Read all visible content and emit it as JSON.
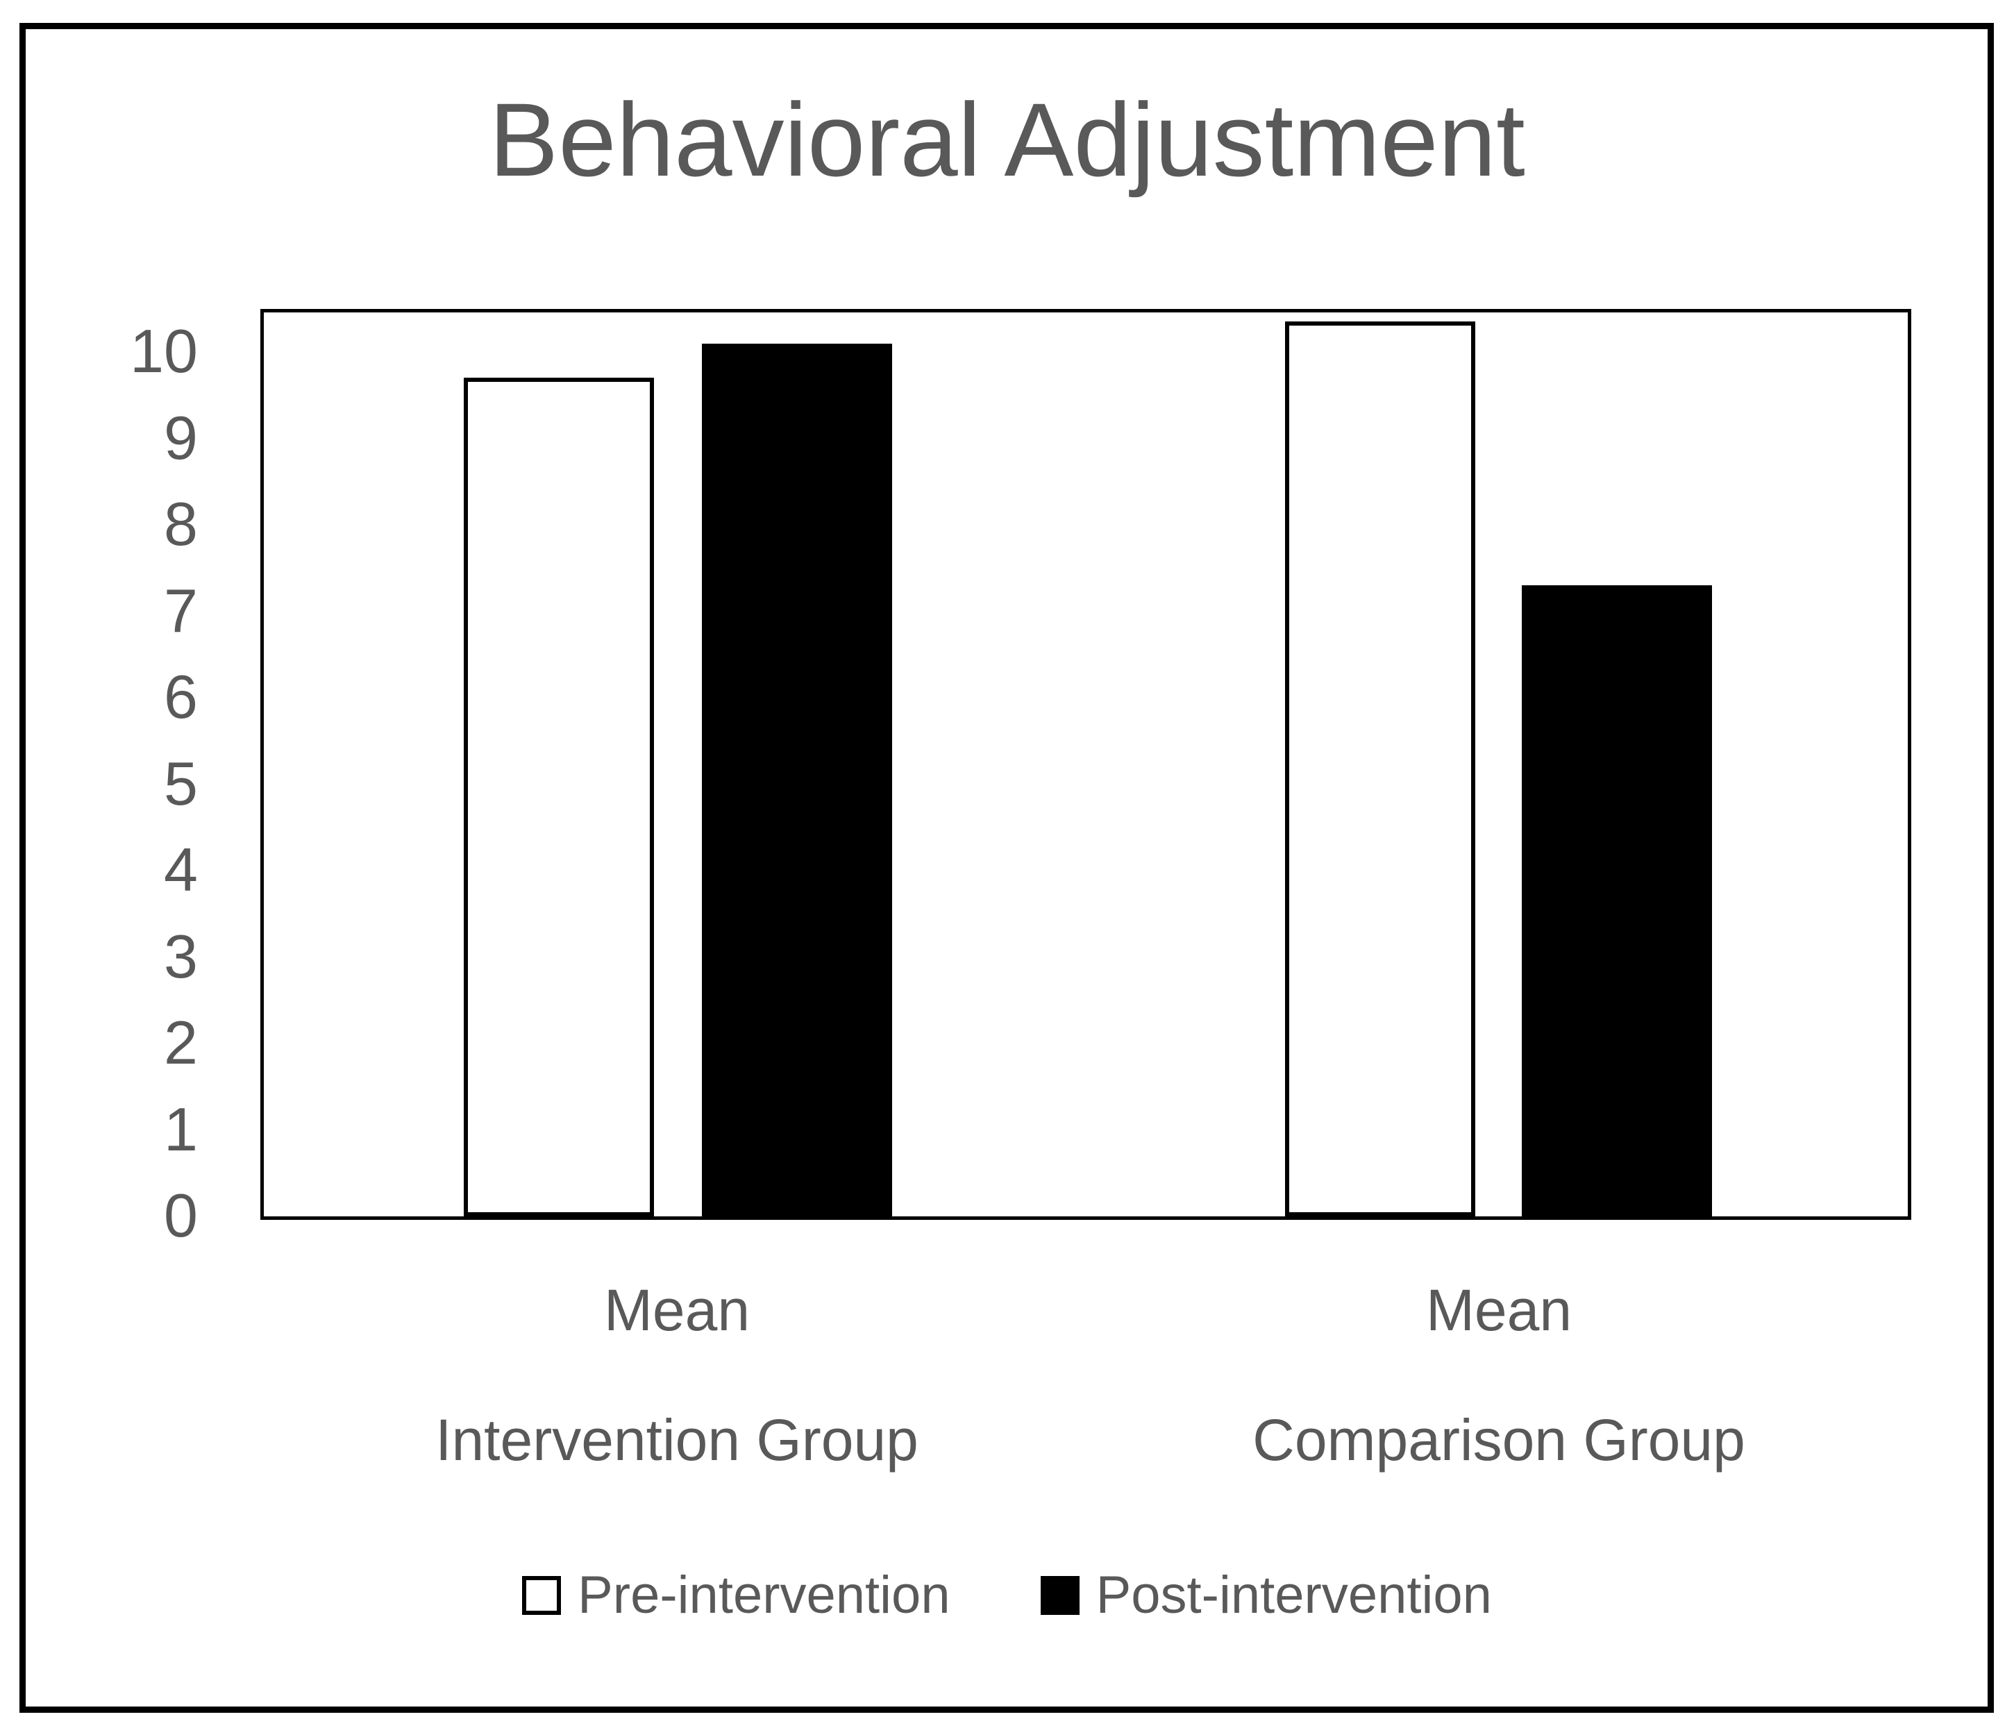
{
  "chart_data": {
    "type": "bar",
    "title": "Behavioral Adjustment",
    "categories": [
      {
        "tick_label": "Mean",
        "group_label": "Intervention Group"
      },
      {
        "tick_label": "Mean",
        "group_label": "Comparison Group"
      }
    ],
    "series": [
      {
        "name": "Pre-intervention",
        "style": "white-outlined",
        "values": [
          9.7,
          10.35
        ]
      },
      {
        "name": "Post-intervention",
        "style": "black-filled",
        "values": [
          10.1,
          7.3
        ]
      }
    ],
    "y_axis": {
      "min": 0,
      "max": 10,
      "tick_step": 1,
      "ticks": [
        0,
        1,
        2,
        3,
        4,
        5,
        6,
        7,
        8,
        9,
        10
      ],
      "plot_top_value": 10.5
    },
    "gridlines": false,
    "legend_position": "bottom",
    "colors": {
      "pre_fill": "#ffffff",
      "post_fill": "#000000",
      "outline": "#000000",
      "text": "#595959",
      "frame": "#000000",
      "background": "#ffffff"
    }
  },
  "legend": {
    "pre_label": "Pre-intervention",
    "post_label": "Post-intervention"
  }
}
